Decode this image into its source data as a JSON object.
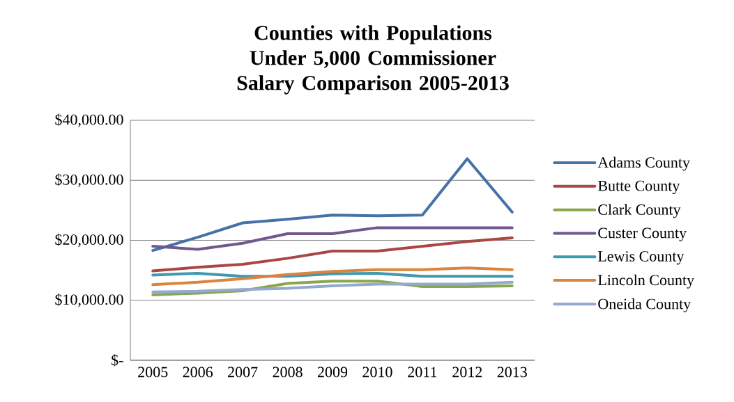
{
  "chart_data": {
    "type": "line",
    "title": "Counties with Populations Under 5,000 Commissioner Salary Comparison 2005-2013",
    "categories": [
      "2005",
      "2006",
      "2007",
      "2008",
      "2009",
      "2010",
      "2011",
      "2012",
      "2013"
    ],
    "series": [
      {
        "name": "Adams County",
        "color": "#4572a7",
        "values": [
          18300,
          20500,
          22900,
          23500,
          24200,
          24100,
          24200,
          33600,
          24700
        ]
      },
      {
        "name": "Butte County",
        "color": "#aa4643",
        "values": [
          14900,
          15500,
          16000,
          17000,
          18200,
          18200,
          19000,
          19800,
          20400
        ]
      },
      {
        "name": "Clark County",
        "color": "#89a54e",
        "values": [
          10900,
          11200,
          11600,
          12800,
          13200,
          13200,
          12300,
          12300,
          12400
        ]
      },
      {
        "name": "Custer County",
        "color": "#71588f",
        "values": [
          19000,
          18500,
          19500,
          21100,
          21100,
          22100,
          22100,
          22100,
          22100
        ]
      },
      {
        "name": "Lewis County",
        "color": "#4198af",
        "values": [
          14200,
          14500,
          14000,
          14000,
          14400,
          14500,
          14000,
          14000,
          14000
        ]
      },
      {
        "name": "Lincoln County",
        "color": "#db843d",
        "values": [
          12600,
          13000,
          13600,
          14300,
          14800,
          15100,
          15100,
          15400,
          15100
        ]
      },
      {
        "name": "Oneida County",
        "color": "#93a9cf",
        "values": [
          11400,
          11500,
          11800,
          12000,
          12400,
          12700,
          12700,
          12700,
          13000
        ]
      }
    ],
    "ylim": [
      0,
      40000
    ],
    "yticks": [
      {
        "value": 0,
        "label": "$-"
      },
      {
        "value": 10000,
        "label": "$10,000.00"
      },
      {
        "value": 20000,
        "label": "$20,000.00"
      },
      {
        "value": 30000,
        "label": "$30,000.00"
      },
      {
        "value": 40000,
        "label": "$40,000.00"
      }
    ],
    "grid": "y",
    "legend": "right",
    "marker": "none",
    "line_style": "solid"
  }
}
